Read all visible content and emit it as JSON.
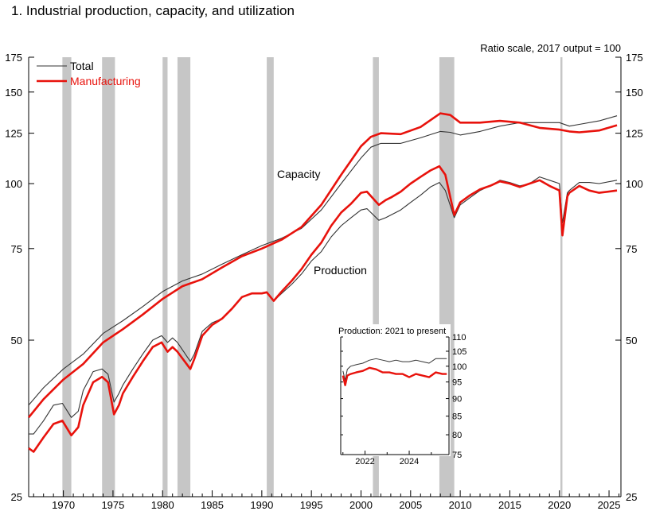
{
  "page": {
    "title": "1.  Industrial production, capacity, and utilization"
  },
  "colors": {
    "total": "#333333",
    "manufacturing": "#e8120c",
    "recession": "#c6c6c6"
  },
  "chart_data": [
    {
      "type": "line",
      "subtitle": "Ratio scale, 2017 output = 100",
      "y_scale": "log",
      "xlim": [
        1966.5,
        2026.2
      ],
      "ylim": [
        25,
        175
      ],
      "x_ticks": [
        1970,
        1975,
        1980,
        1985,
        1990,
        1995,
        2000,
        2005,
        2010,
        2015,
        2020,
        2025
      ],
      "x_tick_labels": [
        "1970",
        "1975",
        "1980",
        "1985",
        "1990",
        "1995",
        "2000",
        "2005",
        "2010",
        "2015",
        "2020",
        "2025"
      ],
      "y_ticks": [
        25,
        50,
        75,
        100,
        125,
        150,
        175
      ],
      "y_tick_labels": [
        "25",
        "50",
        "75",
        "100",
        "125",
        "150",
        "175"
      ],
      "legend": {
        "position": "top-left",
        "entries": [
          "Total",
          "Manufacturing"
        ]
      },
      "annotations": [
        "Capacity",
        "Production"
      ],
      "recessions": [
        [
          1969.9,
          1970.8
        ],
        [
          1973.9,
          1975.2
        ],
        [
          1980.0,
          1980.5
        ],
        [
          1981.5,
          1982.8
        ],
        [
          1990.5,
          1991.2
        ],
        [
          2001.2,
          2001.8
        ],
        [
          2007.9,
          2009.4
        ],
        [
          2020.1,
          2020.3
        ]
      ],
      "series": [
        {
          "name": "Total",
          "kind": "capacity",
          "x": [
            1966.5,
            1968,
            1970,
            1972,
            1974,
            1976,
            1978,
            1980,
            1982,
            1984,
            1986,
            1988,
            1990,
            1992,
            1994,
            1996,
            1998,
            2000,
            2001,
            2002,
            2004,
            2006,
            2008,
            2009,
            2010,
            2012,
            2014,
            2016,
            2018,
            2020,
            2021,
            2022,
            2024,
            2025.8
          ],
          "y": [
            37.5,
            40.5,
            44,
            47,
            51.5,
            54.5,
            58,
            62,
            65,
            67,
            70,
            73,
            76,
            78.5,
            82,
            89,
            100,
            112,
            117.5,
            119.5,
            119.5,
            122.5,
            126,
            125.5,
            124,
            126,
            129,
            131,
            131,
            131,
            129,
            130,
            132,
            135
          ]
        },
        {
          "name": "Manufacturing",
          "kind": "capacity",
          "x": [
            1966.5,
            1968,
            1970,
            1972,
            1974,
            1976,
            1978,
            1980,
            1982,
            1984,
            1986,
            1988,
            1990,
            1992,
            1994,
            1996,
            1998,
            2000,
            2001,
            2002,
            2004,
            2006,
            2008,
            2009,
            2010,
            2012,
            2014,
            2016,
            2018,
            2020,
            2021,
            2022,
            2024,
            2025.8
          ],
          "y": [
            35.5,
            38.5,
            42,
            45,
            49.5,
            52.5,
            56,
            60,
            63.5,
            65.5,
            69,
            72.5,
            75,
            78,
            82.5,
            91,
            104,
            118,
            123,
            125,
            124.5,
            128.5,
            136.5,
            135.5,
            131,
            131,
            132,
            131,
            128,
            127,
            126,
            125.5,
            126.5,
            129.5
          ]
        },
        {
          "name": "Total",
          "kind": "production",
          "x": [
            1966.5,
            1967,
            1968,
            1969,
            1969.9,
            1970.8,
            1971.5,
            1972,
            1973,
            1973.9,
            1974.5,
            1975.1,
            1975.6,
            1976,
            1977,
            1978,
            1979,
            1979.9,
            1980.5,
            1981,
            1981.5,
            1982.8,
            1983.2,
            1984,
            1985,
            1986,
            1987,
            1988,
            1989,
            1990,
            1990.5,
            1991.2,
            1992,
            1993,
            1994,
            1995,
            1996,
            1997,
            1998,
            1999,
            2000,
            2000.6,
            2001.8,
            2002.5,
            2003,
            2004,
            2005,
            2006,
            2007,
            2007.9,
            2008.5,
            2009.4,
            2010,
            2011,
            2012,
            2013,
            2014,
            2015,
            2016,
            2017,
            2018,
            2019,
            2020.0,
            2020.3,
            2020.8,
            2021,
            2022,
            2023,
            2024,
            2025.8
          ],
          "y": [
            33,
            33,
            35,
            37.5,
            37.8,
            35.5,
            36.5,
            40,
            43.5,
            44,
            43,
            38,
            39.5,
            41,
            44,
            47,
            50,
            51,
            49.5,
            50.5,
            49.5,
            45.5,
            47,
            52,
            54,
            55,
            57.5,
            60.5,
            61.5,
            61.5,
            61.8,
            59.5,
            61.5,
            64,
            67,
            71,
            74,
            79,
            83,
            86,
            89,
            89.5,
            85,
            86,
            87,
            89,
            92,
            95,
            98.5,
            100.5,
            97,
            86,
            91,
            94,
            97,
            99,
            101.5,
            100.5,
            99,
            100,
            103,
            101.5,
            100,
            84,
            96,
            97,
            100.5,
            100.5,
            100,
            101.5
          ]
        },
        {
          "name": "Manufacturing",
          "kind": "production",
          "x": [
            1966.5,
            1967,
            1968,
            1969,
            1969.9,
            1970.8,
            1971.5,
            1972,
            1973,
            1973.9,
            1974.5,
            1975.1,
            1975.6,
            1976,
            1977,
            1978,
            1979,
            1979.9,
            1980.5,
            1981,
            1981.5,
            1982.8,
            1983.2,
            1984,
            1985,
            1986,
            1987,
            1988,
            1989,
            1990,
            1990.5,
            1991.2,
            1992,
            1993,
            1994,
            1995,
            1996,
            1997,
            1998,
            1999,
            2000,
            2000.6,
            2001.8,
            2002.5,
            2003,
            2004,
            2005,
            2006,
            2007,
            2007.9,
            2008.5,
            2009.4,
            2010,
            2011,
            2012,
            2013,
            2014,
            2015,
            2016,
            2017,
            2018,
            2019,
            2020.0,
            2020.3,
            2020.8,
            2021,
            2022,
            2023,
            2024,
            2025.8
          ],
          "y": [
            31,
            30.5,
            32.5,
            34.5,
            35,
            32.8,
            34,
            37.5,
            41.5,
            42.5,
            41.5,
            36,
            37.5,
            39.5,
            42.5,
            45.5,
            48.5,
            49.5,
            47.5,
            48.5,
            47.5,
            44,
            46,
            51,
            53.5,
            55,
            57.5,
            60.5,
            61.5,
            61.5,
            61.8,
            59.5,
            62,
            65,
            68.5,
            73,
            77,
            83,
            88,
            91.5,
            96,
            96.5,
            91,
            93,
            94,
            96.5,
            100,
            103,
            106,
            108,
            104,
            87,
            92,
            95,
            97.5,
            99,
            101,
            100,
            98.5,
            100,
            101.5,
            99,
            97,
            79.5,
            94.5,
            96,
            99,
            97,
            96,
            97
          ]
        }
      ]
    },
    {
      "type": "line",
      "title": "Production: 2021 to present",
      "y_scale": "log",
      "xlim": [
        2020.9,
        2025.8
      ],
      "ylim": [
        75,
        110
      ],
      "x_ticks": [
        2022,
        2024
      ],
      "x_tick_labels": [
        "2022",
        "2024"
      ],
      "y_ticks": [
        75,
        80,
        85,
        90,
        95,
        100,
        105,
        110
      ],
      "y_tick_labels": [
        "75",
        "80",
        "85",
        "90",
        "95",
        "100",
        "105",
        "110"
      ],
      "series": [
        {
          "name": "Total",
          "x": [
            2021.0,
            2021.1,
            2021.2,
            2021.35,
            2021.6,
            2021.9,
            2022.2,
            2022.5,
            2022.8,
            2023.1,
            2023.4,
            2023.7,
            2024.0,
            2024.3,
            2024.6,
            2024.9,
            2025.2,
            2025.5,
            2025.7
          ],
          "y": [
            98.5,
            95.5,
            99,
            100,
            100.5,
            101,
            102,
            102.5,
            102,
            101.5,
            102,
            101.5,
            101.5,
            102,
            101.5,
            101,
            102.5,
            102.5,
            102.5
          ]
        },
        {
          "name": "Manufacturing",
          "x": [
            2021.0,
            2021.1,
            2021.2,
            2021.35,
            2021.6,
            2021.9,
            2022.2,
            2022.5,
            2022.8,
            2023.1,
            2023.4,
            2023.7,
            2024.0,
            2024.3,
            2024.6,
            2024.9,
            2025.2,
            2025.5,
            2025.7
          ],
          "y": [
            97,
            94,
            97,
            97.5,
            98,
            98.5,
            99.5,
            99,
            98,
            98,
            97.5,
            97.5,
            96.5,
            97.5,
            97,
            96.5,
            98,
            97.5,
            97.5
          ]
        }
      ]
    }
  ]
}
